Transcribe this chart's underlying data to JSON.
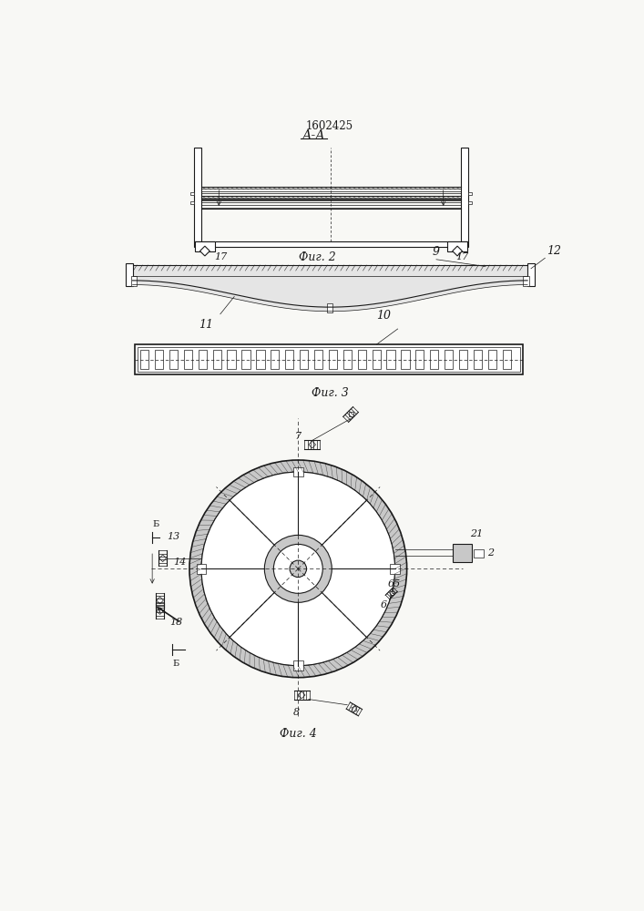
{
  "title": "1602425",
  "aa_label": "А-А",
  "fig2_caption": "Фиг. 2",
  "fig3_caption": "Фиг. 3",
  "fig4_caption": "Фиг. 4",
  "label_17": "17",
  "label_9": "9",
  "label_11": "11",
  "label_12": "12",
  "label_10": "10",
  "label_13": "13",
  "label_14": "14",
  "label_7": "7",
  "label_2": "2",
  "label_21": "21",
  "label_65": "65",
  "label_6": "6",
  "label_18": "18",
  "label_8": "8",
  "label_B": "Б",
  "bg_color": "#f8f8f5",
  "line_color": "#1a1a1a",
  "gray_fill": "#c8c8c8",
  "hatch_fill": "#d8d8d8"
}
